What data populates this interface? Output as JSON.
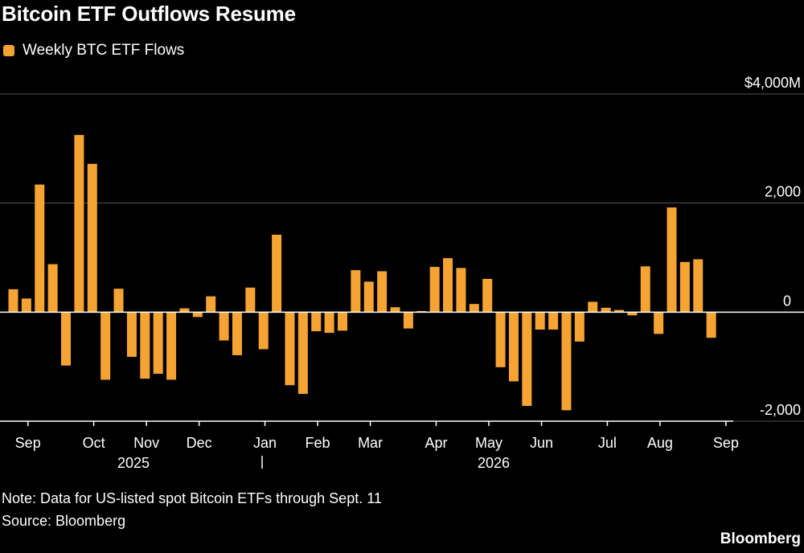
{
  "title": "Bitcoin ETF Outflows Resume",
  "legend": {
    "label": "Weekly BTC ETF Flows",
    "color": "#f5a433"
  },
  "note": "Note: Data for US-listed spot Bitcoin ETFs through Sept. 11",
  "source": "Source: Bloomberg",
  "brand": "Bloomberg",
  "chart_data": {
    "type": "bar",
    "series": [
      {
        "name": "Weekly BTC ETF Flows",
        "color": "#f5a433",
        "values": [
          420,
          250,
          2340,
          880,
          -980,
          3250,
          2720,
          -1240,
          430,
          -820,
          -1220,
          -1130,
          -1240,
          70,
          -90,
          290,
          -520,
          -790,
          450,
          -680,
          1420,
          -1340,
          -1500,
          -350,
          -380,
          -340,
          770,
          560,
          750,
          90,
          -300,
          20,
          830,
          990,
          810,
          150,
          610,
          -1010,
          -1270,
          -1720,
          -320,
          -320,
          -1800,
          -540,
          190,
          80,
          40,
          -60,
          840,
          -400,
          1920,
          920,
          970,
          -470
        ]
      }
    ],
    "ylim": [
      -2000,
      4000
    ],
    "y_ticks": [
      4000,
      2000,
      0,
      -2000
    ],
    "y_tick_labels": [
      "$4,000M",
      "2,000",
      "0",
      "-2,000"
    ],
    "x_ticks": [
      {
        "label": "Sep",
        "index": 1
      },
      {
        "label": "Oct",
        "index": 6
      },
      {
        "label": "Nov",
        "index": 10
      },
      {
        "label": "Dec",
        "index": 14
      },
      {
        "label": "Jan",
        "index": 19
      },
      {
        "label": "Feb",
        "index": 23
      },
      {
        "label": "Mar",
        "index": 27
      },
      {
        "label": "Apr",
        "index": 32
      },
      {
        "label": "May",
        "index": 36
      },
      {
        "label": "Jun",
        "index": 40
      },
      {
        "label": "Jul",
        "index": 45
      },
      {
        "label": "Aug",
        "index": 49
      },
      {
        "label": "Sep",
        "index": 54
      }
    ],
    "year_labels": [
      "2025",
      "2026"
    ],
    "grid": true
  }
}
